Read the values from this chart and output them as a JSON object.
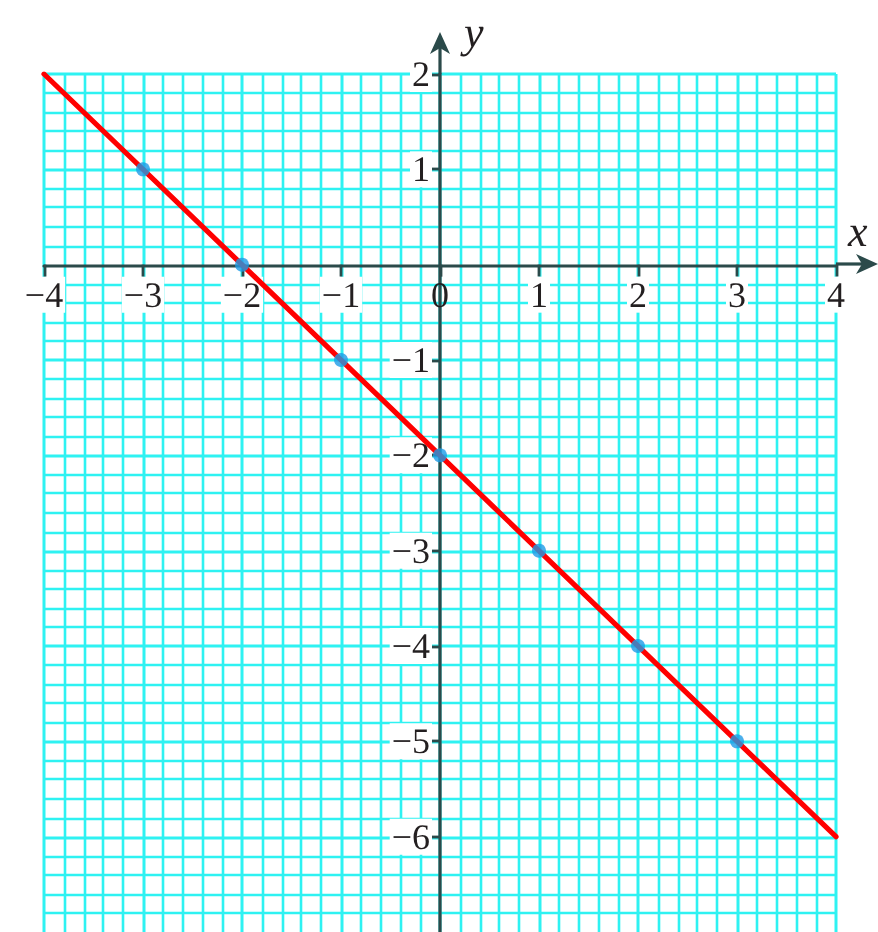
{
  "chart_data": {
    "type": "line",
    "xlabel": "x",
    "ylabel": "y",
    "xlim": [
      -4,
      4
    ],
    "ylim": [
      -7,
      2
    ],
    "xticks": [
      {
        "value": -4,
        "label": "−4"
      },
      {
        "value": -3.8,
        "label": null
      },
      {
        "value": -3.6,
        "label": null
      },
      {
        "value": -3.4,
        "label": null
      },
      {
        "value": -3.2,
        "label": null
      },
      {
        "value": -3,
        "label": "−3"
      },
      {
        "value": -2.8,
        "label": null
      },
      {
        "value": -2.6,
        "label": null
      },
      {
        "value": -2.4,
        "label": null
      },
      {
        "value": -2.2,
        "label": null
      },
      {
        "value": -2,
        "label": "−2"
      },
      {
        "value": -1.8,
        "label": null
      },
      {
        "value": -1.6,
        "label": null
      },
      {
        "value": -1.4,
        "label": null
      },
      {
        "value": -1.2,
        "label": null
      },
      {
        "value": -1,
        "label": "−1"
      },
      {
        "value": -0.8,
        "label": null
      },
      {
        "value": -0.6,
        "label": null
      },
      {
        "value": -0.4,
        "label": null
      },
      {
        "value": -0.2,
        "label": null
      },
      0,
      {
        "value": 0.2,
        "label": null
      },
      {
        "value": 0.4,
        "label": null
      },
      {
        "value": 0.6,
        "label": null
      },
      {
        "value": 0.8,
        "label": null
      },
      1,
      {
        "value": 1.2,
        "label": null
      },
      {
        "value": 1.4,
        "label": null
      },
      {
        "value": 1.6,
        "label": null
      },
      {
        "value": 1.8,
        "label": null
      },
      2,
      {
        "value": 2.2,
        "label": null
      },
      {
        "value": 2.4,
        "label": null
      },
      {
        "value": 2.6,
        "label": null
      },
      {
        "value": 2.8,
        "label": null
      },
      3,
      {
        "value": 3.2,
        "label": null
      },
      {
        "value": 3.4,
        "label": null
      },
      {
        "value": 3.6,
        "label": null
      },
      {
        "value": 3.8,
        "label": null
      },
      4
    ],
    "yticks": [
      {
        "value": -6.8,
        "label": null
      },
      {
        "value": -6.6,
        "label": null
      },
      {
        "value": -6.4,
        "label": null
      },
      {
        "value": -6.2,
        "label": null
      },
      {
        "value": -6,
        "label": "−6"
      },
      {
        "value": -5.8,
        "label": null
      },
      {
        "value": -5.6,
        "label": null
      },
      {
        "value": -5.4,
        "label": null
      },
      {
        "value": -5.2,
        "label": null
      },
      {
        "value": -5,
        "label": "−5"
      },
      {
        "value": -4.8,
        "label": null
      },
      {
        "value": -4.6,
        "label": null
      },
      {
        "value": -4.4,
        "label": null
      },
      {
        "value": -4.2,
        "label": null
      },
      {
        "value": -4,
        "label": "−4"
      },
      {
        "value": -3.8,
        "label": null
      },
      {
        "value": -3.6,
        "label": null
      },
      {
        "value": -3.4,
        "label": null
      },
      {
        "value": -3.2,
        "label": null
      },
      {
        "value": -3,
        "label": "−3"
      },
      {
        "value": -2.8,
        "label": null
      },
      {
        "value": -2.6,
        "label": null
      },
      {
        "value": -2.4,
        "label": null
      },
      {
        "value": -2.2,
        "label": null
      },
      {
        "value": -2,
        "label": "−2"
      },
      {
        "value": -1.8,
        "label": null
      },
      {
        "value": -1.6,
        "label": null
      },
      {
        "value": -1.4,
        "label": null
      },
      {
        "value": -1.2,
        "label": null
      },
      {
        "value": -1,
        "label": "−1"
      },
      {
        "value": -0.8,
        "label": null
      },
      {
        "value": -0.6,
        "label": null
      },
      {
        "value": -0.4,
        "label": null
      },
      {
        "value": -0.2,
        "label": null
      },
      {
        "value": 0.2,
        "label": null
      },
      {
        "value": 0.4,
        "label": null
      },
      {
        "value": 0.6,
        "label": null
      },
      {
        "value": 0.8,
        "label": null
      },
      1,
      {
        "value": 1.2,
        "label": null
      },
      {
        "value": 1.4,
        "label": null
      },
      {
        "value": 1.6,
        "label": null
      },
      {
        "value": 1.8,
        "label": null
      },
      2
    ],
    "grid": true,
    "series": [
      {
        "type": "line",
        "color": "#ff0000",
        "marker": "none",
        "line_style": "solid",
        "x": [
          -4,
          4
        ],
        "values": [
          2,
          -6
        ]
      },
      {
        "type": "scatter",
        "color": "#1e9be6",
        "marker": "circle",
        "x": [
          -3,
          -2,
          -1,
          0,
          1,
          2,
          3
        ],
        "values": [
          1,
          0,
          -1,
          -2,
          -3,
          -4,
          -5
        ]
      }
    ]
  }
}
